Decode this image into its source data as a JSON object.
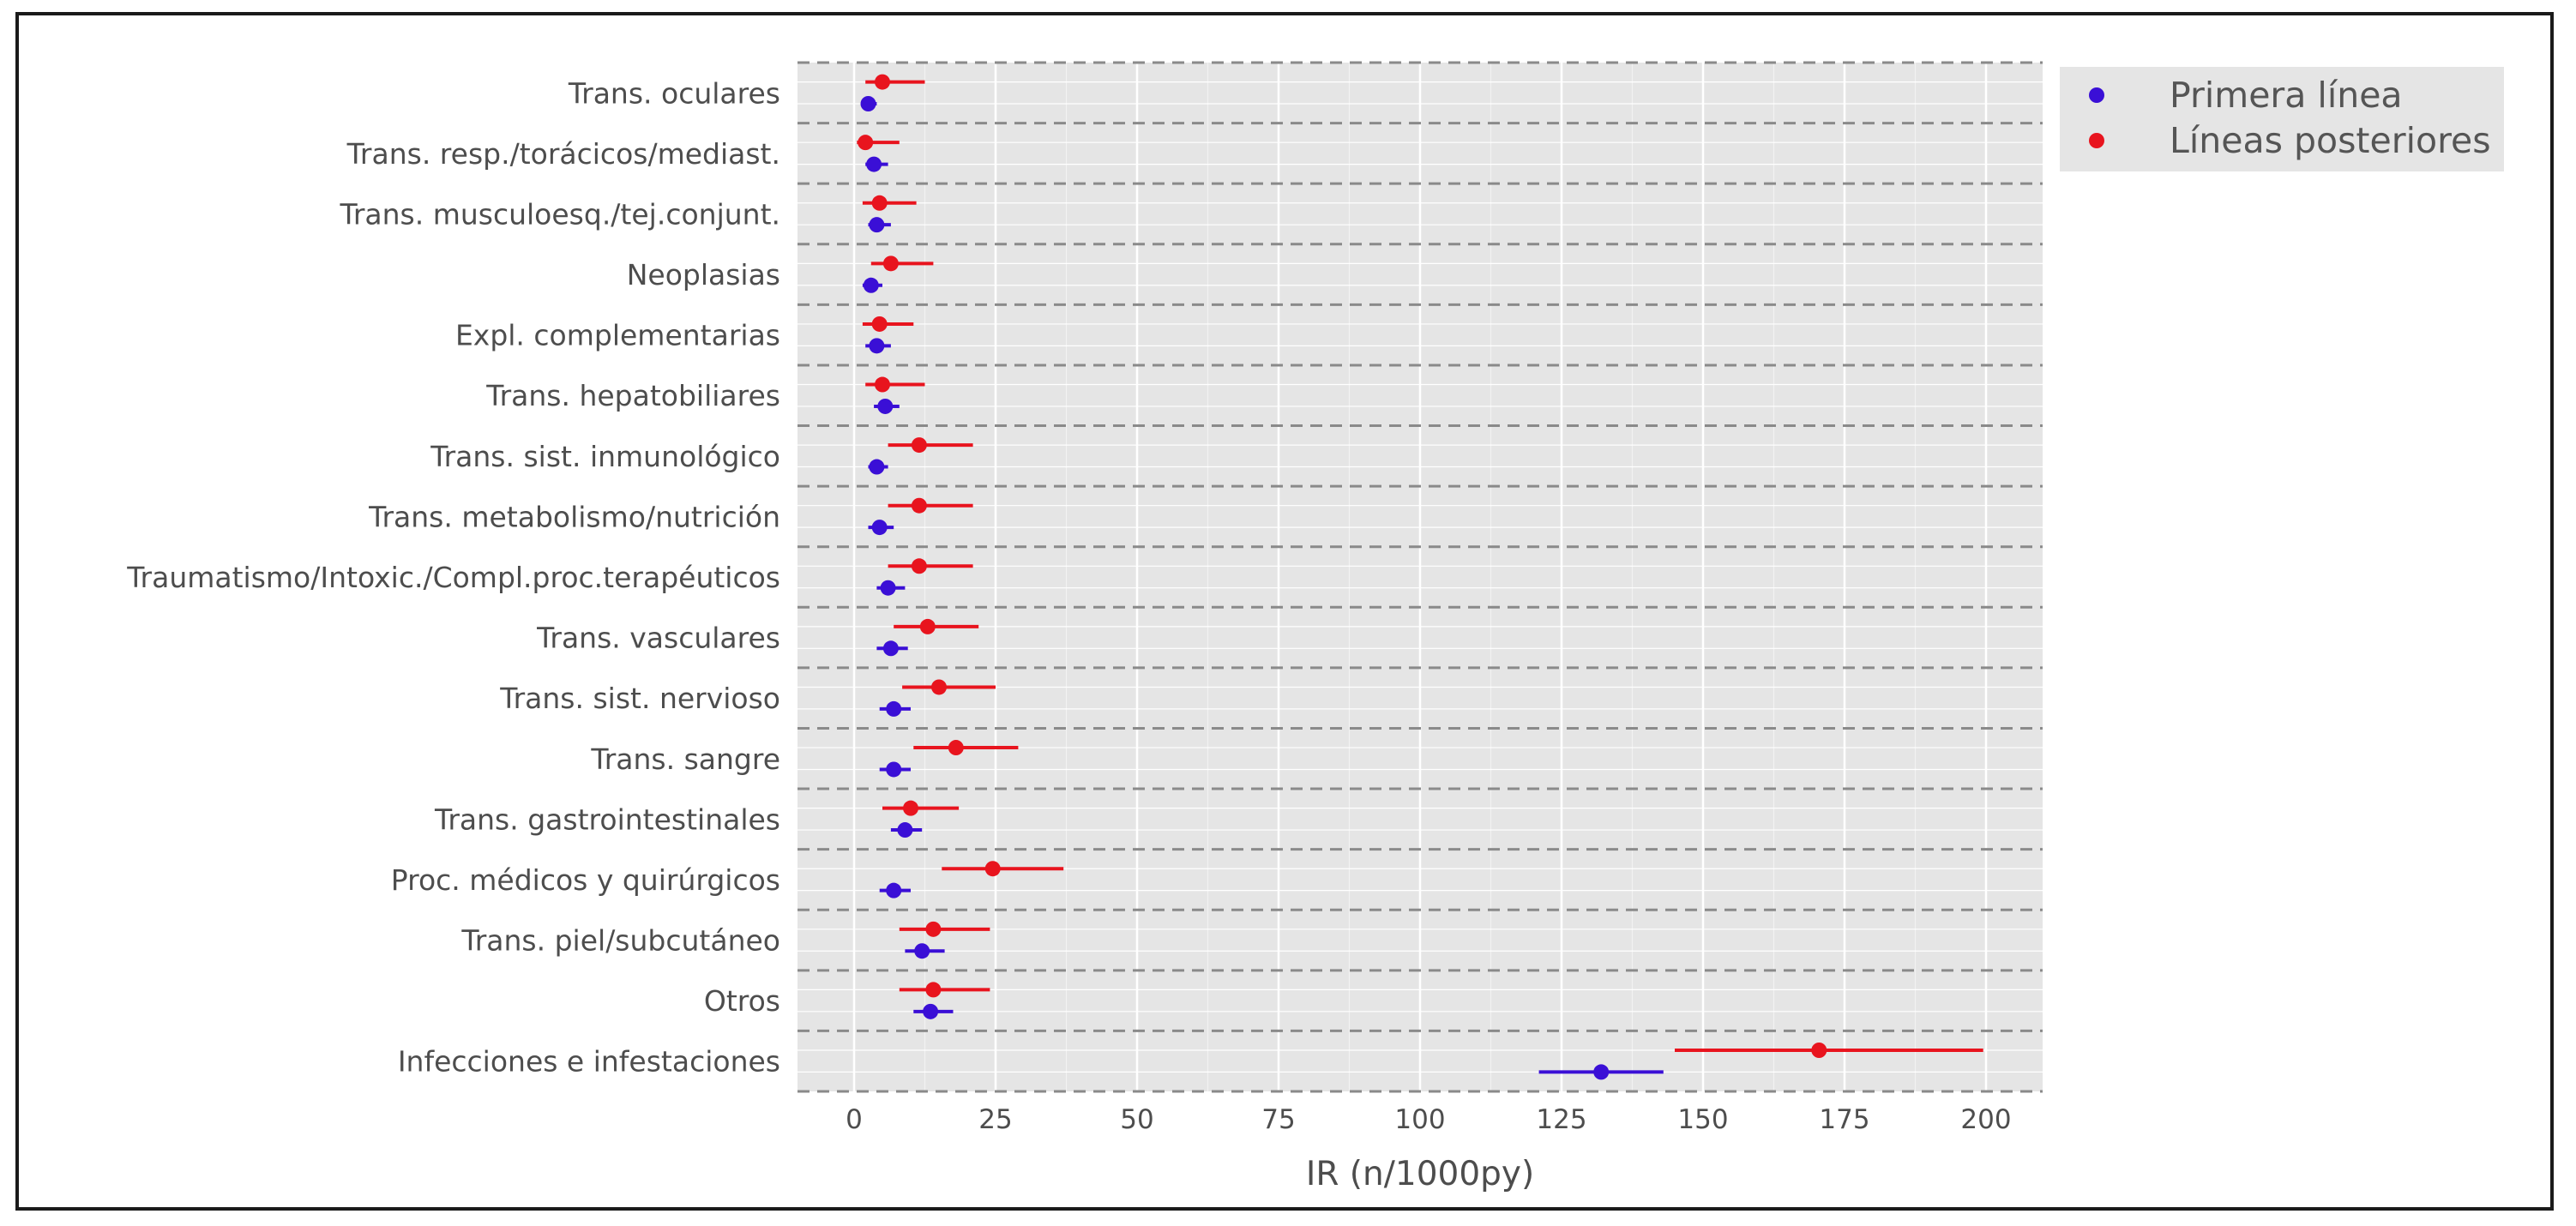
{
  "chart_data": {
    "type": "forest",
    "xlabel": "IR (n/1000py)",
    "xlim": [
      -10,
      210
    ],
    "x_ticks": [
      0,
      25,
      50,
      75,
      100,
      125,
      150,
      175,
      200
    ],
    "grid": true,
    "legend_position": "outside-top-right",
    "categories": [
      "Trans. oculares",
      "Trans. resp./torácicos/mediast.",
      "Trans. musculoesq./tej.conjunt.",
      "Neoplasias",
      "Expl. complementarias",
      "Trans. hepatobiliares",
      "Trans. sist. inmunológico",
      "Trans. metabolismo/nutrición",
      "Traumatismo/Intoxic./Compl.proc.terapéuticos",
      "Trans. vasculares",
      "Trans. sist. nervioso",
      "Trans. sangre",
      "Trans. gastrointestinales",
      "Proc. médicos y quirúrgicos",
      "Trans. piel/subcutáneo",
      "Otros",
      "Infecciones e infestaciones"
    ],
    "series": [
      {
        "name": "Primera línea",
        "color": "#3a0fd6",
        "values": [
          2.5,
          3.5,
          4,
          3,
          4,
          5.5,
          4,
          4.5,
          6,
          6.5,
          7,
          7,
          9,
          7,
          12,
          13.5,
          132
        ],
        "lower": [
          1.5,
          2,
          2.5,
          1.5,
          2,
          3.5,
          2.5,
          2.5,
          4,
          4,
          4.5,
          4.5,
          6.5,
          4.5,
          9,
          10.5,
          121
        ],
        "upper": [
          4,
          6,
          6.5,
          5,
          6.5,
          8,
          6,
          7,
          9,
          9.5,
          10,
          10,
          12,
          10,
          16,
          17.5,
          143
        ]
      },
      {
        "name": "Líneas posteriores",
        "color": "#e8141e",
        "values": [
          5,
          2,
          4.5,
          6.5,
          4.5,
          5,
          11.5,
          11.5,
          11.5,
          13,
          15,
          18,
          10,
          24.5,
          14,
          14,
          170.5
        ],
        "lower": [
          2,
          0.5,
          1.5,
          3,
          1.5,
          2,
          6,
          6,
          6,
          7,
          8.5,
          10.5,
          5,
          15.5,
          8,
          8,
          145
        ],
        "upper": [
          12.5,
          8,
          11,
          14,
          10.5,
          12.5,
          21,
          21,
          21,
          22,
          25,
          29,
          18.5,
          37,
          24,
          24,
          199.5
        ]
      }
    ]
  }
}
